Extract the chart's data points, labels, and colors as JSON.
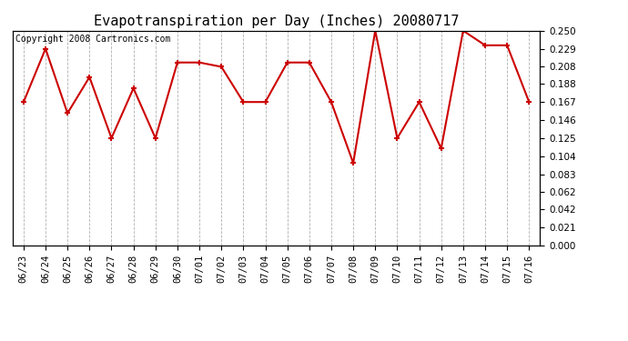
{
  "title": "Evapotranspiration per Day (Inches) 20080717",
  "copyright_text": "Copyright 2008 Cartronics.com",
  "dates": [
    "06/23",
    "06/24",
    "06/25",
    "06/26",
    "06/27",
    "06/28",
    "06/29",
    "06/30",
    "07/01",
    "07/02",
    "07/03",
    "07/04",
    "07/05",
    "07/06",
    "07/07",
    "07/08",
    "07/09",
    "07/10",
    "07/11",
    "07/12",
    "07/13",
    "07/14",
    "07/15",
    "07/16"
  ],
  "values": [
    0.167,
    0.229,
    0.154,
    0.196,
    0.125,
    0.183,
    0.125,
    0.213,
    0.213,
    0.208,
    0.167,
    0.167,
    0.213,
    0.213,
    0.167,
    0.096,
    0.25,
    0.125,
    0.167,
    0.113,
    0.25,
    0.233,
    0.233,
    0.167
  ],
  "line_color": "#cc0000",
  "marker_color": "#cc0000",
  "bg_color": "#ffffff",
  "grid_color": "#b0b0b0",
  "ylim": [
    0.0,
    0.25
  ],
  "yticks": [
    0.0,
    0.021,
    0.042,
    0.062,
    0.083,
    0.104,
    0.125,
    0.146,
    0.167,
    0.188,
    0.208,
    0.229,
    0.25
  ],
  "title_fontsize": 11,
  "copyright_fontsize": 7,
  "tick_fontsize": 7.5
}
